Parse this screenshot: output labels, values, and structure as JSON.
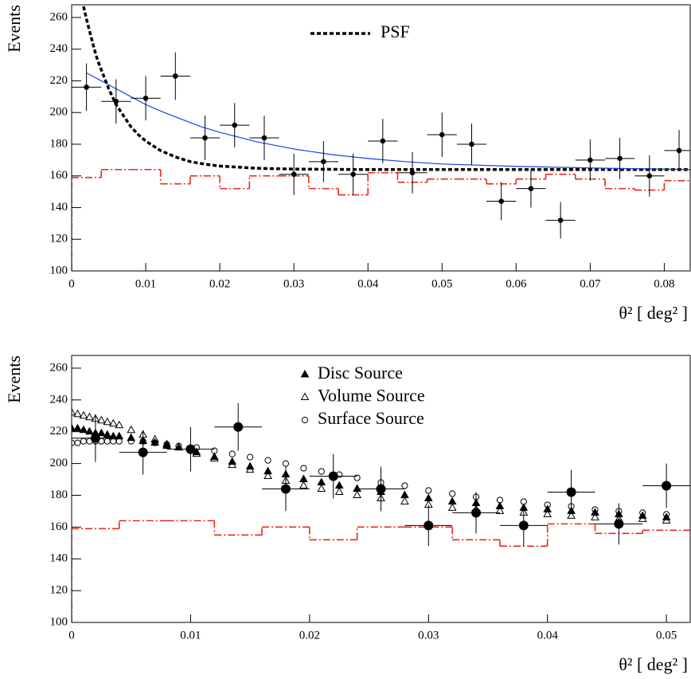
{
  "chart_data": [
    {
      "type": "scatter",
      "xlabel": "θ² [ deg² ]",
      "ylabel": "Events",
      "xlim": [
        0,
        0.0835
      ],
      "ylim": [
        100,
        268
      ],
      "xticks": [
        0,
        0.01,
        0.02,
        0.03,
        0.04,
        0.05,
        0.06,
        0.07,
        0.08
      ],
      "yticks": [
        100,
        120,
        140,
        160,
        180,
        200,
        220,
        240,
        260
      ],
      "points": {
        "color": "#000000",
        "xerr": 0.002,
        "x": [
          0.002,
          0.006,
          0.01,
          0.014,
          0.018,
          0.022,
          0.026,
          0.03,
          0.034,
          0.038,
          0.042,
          0.046,
          0.05,
          0.054,
          0.058,
          0.062,
          0.066,
          0.07,
          0.074,
          0.078,
          0.082
        ],
        "values": [
          216,
          207,
          209,
          223,
          184,
          192,
          184,
          161,
          169,
          161,
          182,
          162,
          186,
          180,
          144,
          152,
          132,
          170,
          171,
          160,
          176
        ],
        "errors": [
          15,
          14,
          14,
          15,
          14,
          14,
          14,
          13,
          13,
          13,
          14,
          13,
          14,
          13,
          12,
          12,
          11.5,
          13,
          13,
          13,
          13
        ]
      },
      "background": {
        "color": "#e8291c",
        "bins": [
          0,
          0.004,
          0.008,
          0.012,
          0.016,
          0.02,
          0.024,
          0.028,
          0.032,
          0.036,
          0.04,
          0.044,
          0.048,
          0.052,
          0.056,
          0.06,
          0.064,
          0.068,
          0.072,
          0.076,
          0.08,
          0.084
        ],
        "values": [
          159,
          164,
          164,
          155,
          160,
          152,
          160,
          160,
          152,
          148,
          162,
          156,
          158,
          158,
          155,
          158,
          161,
          158,
          152,
          151,
          157
        ]
      },
      "curves": [
        {
          "name": "PSF",
          "color": "#000000",
          "dashed": true,
          "x": [
            0.0016,
            0.002,
            0.0025,
            0.003,
            0.0035,
            0.004,
            0.005,
            0.006,
            0.007,
            0.008,
            0.009,
            0.01,
            0.012,
            0.014,
            0.016,
            0.018,
            0.02,
            0.025,
            0.03,
            0.04,
            0.0835
          ],
          "values": [
            267,
            259,
            250,
            241,
            233,
            227,
            215,
            205,
            198,
            191,
            186,
            182,
            176,
            172,
            169,
            167.4,
            166.2,
            164.8,
            164.3,
            164,
            164
          ]
        },
        {
          "color": "#1f3fe0",
          "dashed": false,
          "x": [
            0.002,
            0.004,
            0.006,
            0.008,
            0.01,
            0.0125,
            0.015,
            0.0175,
            0.02,
            0.025,
            0.03,
            0.035,
            0.04,
            0.045,
            0.05,
            0.06,
            0.07,
            0.0835
          ],
          "values": [
            225,
            220,
            215,
            210,
            205,
            200,
            195.5,
            191,
            187.5,
            181.5,
            177,
            173.5,
            171,
            169,
            167.5,
            166,
            165,
            164
          ]
        }
      ]
    },
    {
      "type": "scatter",
      "xlabel": "θ² [ deg² ]",
      "ylabel": "Events",
      "xlim": [
        0,
        0.052
      ],
      "ylim": [
        100,
        268
      ],
      "xticks": [
        0,
        0.01,
        0.02,
        0.03,
        0.04,
        0.05
      ],
      "yticks": [
        100,
        120,
        140,
        160,
        180,
        200,
        220,
        240,
        260
      ],
      "points": {
        "color": "#000000",
        "xerr": 0.002,
        "x": [
          0.002,
          0.006,
          0.01,
          0.014,
          0.018,
          0.022,
          0.026,
          0.03,
          0.034,
          0.038,
          0.042,
          0.046,
          0.05
        ],
        "values": [
          216,
          207,
          209,
          223,
          184,
          192,
          184,
          161,
          169,
          161,
          182,
          162,
          186
        ],
        "errors": [
          15,
          14,
          14,
          15,
          14,
          14,
          14,
          13,
          13,
          13,
          14,
          13,
          14
        ]
      },
      "background": {
        "color": "#e8291c",
        "bins": [
          0,
          0.004,
          0.008,
          0.012,
          0.016,
          0.02,
          0.024,
          0.028,
          0.032,
          0.036,
          0.04,
          0.044,
          0.048,
          0.052
        ],
        "values": [
          159,
          164,
          164,
          155,
          160,
          152,
          160,
          160,
          152,
          148,
          162,
          156,
          158
        ]
      },
      "model_x": [
        0,
        0.0005,
        0.001,
        0.0015,
        0.002,
        0.0025,
        0.003,
        0.0035,
        0.004,
        0.005,
        0.006,
        0.007,
        0.008,
        0.009,
        0.0105,
        0.012,
        0.0135,
        0.015,
        0.0165,
        0.018,
        0.0195,
        0.021,
        0.0225,
        0.024,
        0.026,
        0.028,
        0.03,
        0.032,
        0.034,
        0.036,
        0.038,
        0.04,
        0.042,
        0.044,
        0.046,
        0.048,
        0.05
      ],
      "series": [
        {
          "name": "Disc Source",
          "marker": "triangle",
          "filled": true,
          "color": "#000000",
          "values": [
            222,
            222,
            221,
            220,
            219,
            219,
            218,
            217,
            217,
            216,
            214,
            213,
            211,
            210,
            207,
            204,
            201,
            198,
            195,
            193,
            190,
            188,
            186,
            184,
            182,
            180,
            178,
            176,
            175,
            173,
            172,
            171,
            170,
            169,
            168,
            167,
            166
          ]
        },
        {
          "name": "Volume Source",
          "marker": "triangle",
          "filled": false,
          "color": "#000000",
          "values": [
            232,
            231,
            230,
            229,
            228,
            227,
            226,
            225,
            224,
            221,
            218,
            215,
            212,
            210,
            206,
            203,
            199,
            196,
            192,
            189,
            186,
            184,
            182,
            180,
            178,
            176,
            174,
            172,
            171,
            170,
            169,
            168,
            167,
            166,
            165,
            165,
            164
          ]
        },
        {
          "name": "Surface Source",
          "marker": "circle",
          "filled": false,
          "color": "#000000",
          "values": [
            213,
            213,
            214,
            214,
            214,
            214,
            214,
            214,
            214,
            214,
            214,
            213,
            212,
            211,
            210,
            208,
            206,
            204,
            202,
            200,
            197,
            195,
            193,
            191,
            188,
            186,
            183,
            181,
            179,
            177,
            176,
            174,
            173,
            171,
            170,
            169,
            168
          ]
        }
      ]
    }
  ]
}
